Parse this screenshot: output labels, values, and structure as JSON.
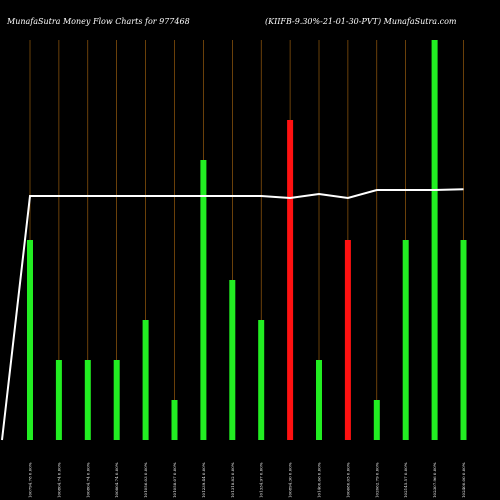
{
  "header": {
    "left_title": "MunafaSutra  Money Flow  Charts for 977468",
    "right_title": "(KIIFB-9.30%-21-01-30-PVT) MunafaSutra.com"
  },
  "chart_data": {
    "type": "bar",
    "grid": "vertical lines",
    "colors": {
      "up": "#22ee22",
      "down": "#ff1111",
      "line": "#ffffff",
      "gridline": "#b06a10",
      "background": "#000000"
    },
    "categories": [
      "100794.78 0.00%",
      "100804.74 0.00%",
      "100804.74 0.00%",
      "100804.74 0.00%",
      "101056.03 0.00%",
      "101058.07 0.00%",
      "101239.44 0.00%",
      "101318.82 0.00%",
      "101334.97 0.00%",
      "100894.30 0.00%",
      "101400.66 0.00%",
      "100680.05 0.00%",
      "102062.79 0.00%",
      "102145.57 0.00%",
      "102307.96 0.00%",
      "102400.00 0.00%"
    ],
    "bars": [
      {
        "value": 5,
        "direction": "up"
      },
      {
        "value": 2,
        "direction": "up"
      },
      {
        "value": 2,
        "direction": "up"
      },
      {
        "value": 2,
        "direction": "up"
      },
      {
        "value": 3,
        "direction": "up"
      },
      {
        "value": 1,
        "direction": "up"
      },
      {
        "value": 7,
        "direction": "up"
      },
      {
        "value": 4,
        "direction": "up"
      },
      {
        "value": 3,
        "direction": "up"
      },
      {
        "value": 8,
        "direction": "down"
      },
      {
        "value": 2,
        "direction": "up"
      },
      {
        "value": 5,
        "direction": "down"
      },
      {
        "value": 1,
        "direction": "up"
      },
      {
        "value": 5,
        "direction": "up"
      },
      {
        "value": 10,
        "direction": "up"
      },
      {
        "value": 5,
        "direction": "up"
      }
    ],
    "bar_scale_max": 10,
    "line": [
      0,
      6.1,
      6.1,
      6.1,
      6.1,
      6.1,
      6.1,
      6.1,
      6.1,
      6.1,
      6.05,
      6.15,
      6.05,
      6.25,
      6.25,
      6.25,
      6.27
    ],
    "line_scale": [
      0,
      10
    ]
  }
}
